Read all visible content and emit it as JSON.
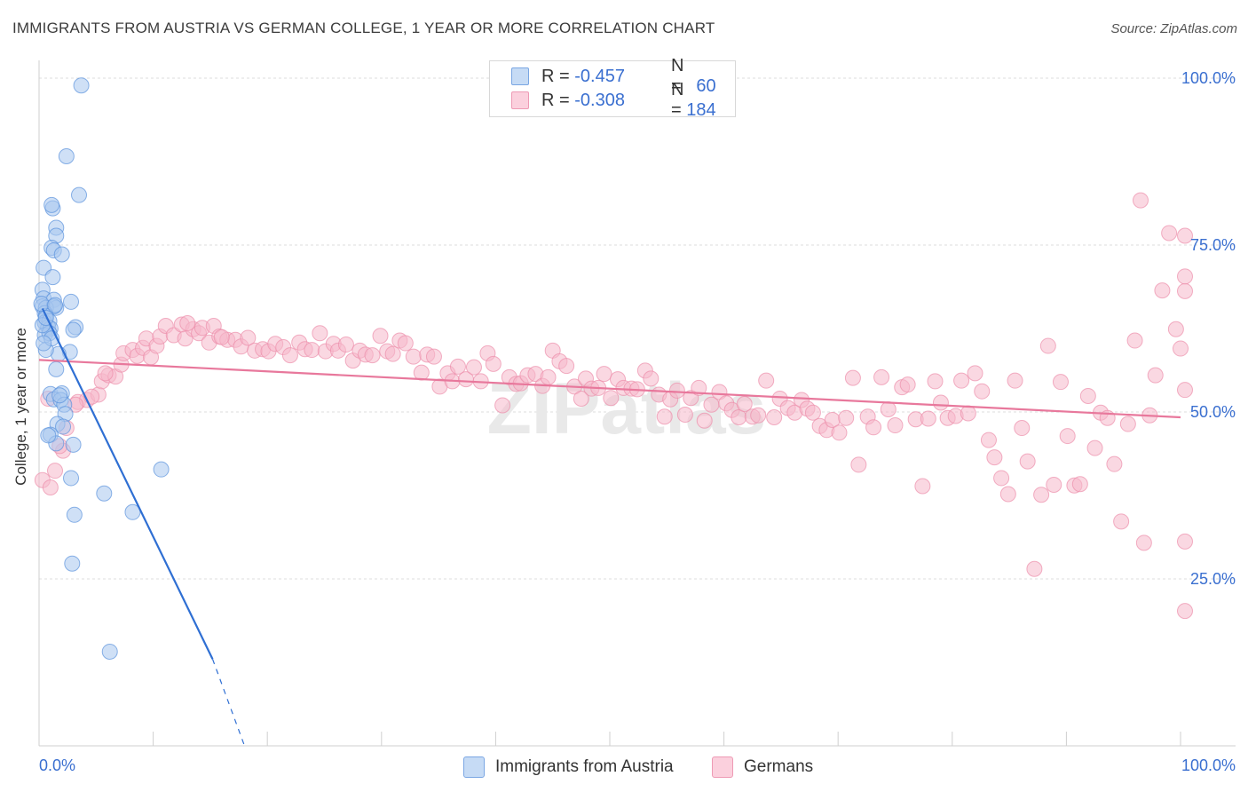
{
  "title": "IMMIGRANTS FROM AUSTRIA VS GERMAN COLLEGE, 1 YEAR OR MORE CORRELATION CHART",
  "source": "Source: ZipAtlas.com",
  "watermark": "ZIPatlas",
  "legend": {
    "rows": [
      {
        "r_label": "R =",
        "r_value": "-0.457",
        "n_label": "N =",
        "n_value": "60",
        "color": "#a7c7ef"
      },
      {
        "r_label": "R =",
        "r_value": "-0.308",
        "n_label": "N =",
        "n_value": "184",
        "color": "#f6b8ca"
      }
    ]
  },
  "chart_data": {
    "type": "scatter",
    "title": "IMMIGRANTS FROM AUSTRIA VS GERMAN COLLEGE, 1 YEAR OR MORE CORRELATION CHART",
    "xlabel": "",
    "ylabel": "College, 1 year or more",
    "xlim": [
      0,
      100
    ],
    "ylim": [
      0,
      100
    ],
    "x_tick_labels": [
      "0.0%",
      "100.0%"
    ],
    "y_tick_labels": [
      "100.0%",
      "75.0%",
      "50.0%",
      "25.0%"
    ],
    "y_tick_values": [
      100,
      75,
      50,
      25
    ],
    "grid": true,
    "series": [
      {
        "name": "Immigrants from Austria",
        "color": "#a7c7ef",
        "stroke": "#5b93dd",
        "line_color": "#2f6fd3",
        "trend": {
          "x0": 0.3,
          "y0": 65.5,
          "x1": 15.2,
          "y1": 13.0,
          "dash_x1": 18.0,
          "dash_y1": 0
        },
        "points": [
          [
            3.7,
            98.9
          ],
          [
            2.4,
            88.3
          ],
          [
            3.5,
            82.5
          ],
          [
            1.2,
            80.5
          ],
          [
            1.1,
            81.0
          ],
          [
            1.5,
            77.6
          ],
          [
            1.5,
            76.4
          ],
          [
            1.1,
            74.6
          ],
          [
            1.3,
            74.2
          ],
          [
            2.0,
            73.6
          ],
          [
            0.4,
            71.6
          ],
          [
            1.2,
            70.2
          ],
          [
            0.3,
            68.3
          ],
          [
            0.4,
            67.0
          ],
          [
            1.3,
            66.8
          ],
          [
            1.5,
            65.6
          ],
          [
            2.8,
            66.5
          ],
          [
            0.3,
            65.8
          ],
          [
            0.6,
            65.6
          ],
          [
            1.3,
            65.8
          ],
          [
            0.5,
            64.8
          ],
          [
            0.6,
            64.4
          ],
          [
            0.5,
            63.4
          ],
          [
            0.9,
            63.6
          ],
          [
            0.8,
            62.7
          ],
          [
            1.0,
            62.5
          ],
          [
            3.2,
            62.7
          ],
          [
            3.0,
            62.3
          ],
          [
            0.5,
            61.5
          ],
          [
            0.9,
            61.8
          ],
          [
            2.7,
            59.0
          ],
          [
            1.7,
            58.7
          ],
          [
            1.5,
            56.4
          ],
          [
            1.0,
            52.7
          ],
          [
            2.0,
            52.8
          ],
          [
            1.3,
            51.9
          ],
          [
            1.9,
            51.8
          ],
          [
            2.2,
            51.1
          ],
          [
            2.3,
            49.7
          ],
          [
            1.6,
            48.2
          ],
          [
            2.1,
            47.8
          ],
          [
            1.0,
            46.6
          ],
          [
            1.5,
            45.3
          ],
          [
            3.0,
            45.1
          ],
          [
            2.8,
            40.1
          ],
          [
            5.7,
            37.8
          ],
          [
            3.1,
            34.6
          ],
          [
            8.2,
            35.0
          ],
          [
            10.7,
            41.4
          ],
          [
            2.9,
            27.3
          ],
          [
            6.2,
            14.1
          ],
          [
            0.3,
            63.0
          ],
          [
            0.6,
            64.1
          ],
          [
            0.2,
            66.2
          ],
          [
            1.4,
            66.0
          ],
          [
            1.8,
            52.5
          ],
          [
            0.8,
            46.5
          ],
          [
            0.6,
            59.3
          ],
          [
            1.1,
            61.0
          ],
          [
            0.4,
            60.3
          ]
        ]
      },
      {
        "name": "Germans",
        "color": "#f6b8ca",
        "stroke": "#ec8fab",
        "line_color": "#e8789c",
        "trend": {
          "x0": 0,
          "y0": 57.8,
          "x1": 100,
          "y1": 49.2
        },
        "points": [
          [
            0.3,
            39.8
          ],
          [
            1.0,
            38.7
          ],
          [
            1.4,
            41.2
          ],
          [
            2.1,
            44.2
          ],
          [
            2.4,
            47.6
          ],
          [
            3.4,
            51.5
          ],
          [
            4.2,
            51.8
          ],
          [
            5.2,
            52.6
          ],
          [
            5.5,
            54.6
          ],
          [
            6.1,
            55.5
          ],
          [
            6.7,
            55.3
          ],
          [
            7.2,
            57.1
          ],
          [
            7.4,
            58.8
          ],
          [
            8.2,
            59.3
          ],
          [
            8.6,
            58.4
          ],
          [
            9.1,
            59.6
          ],
          [
            9.4,
            61.0
          ],
          [
            9.8,
            58.2
          ],
          [
            10.3,
            59.9
          ],
          [
            10.6,
            61.3
          ],
          [
            11.1,
            62.9
          ],
          [
            11.8,
            61.5
          ],
          [
            12.5,
            63.1
          ],
          [
            12.8,
            61.0
          ],
          [
            13.5,
            62.4
          ],
          [
            14.0,
            61.8
          ],
          [
            14.3,
            62.6
          ],
          [
            14.9,
            60.4
          ],
          [
            15.3,
            62.9
          ],
          [
            15.8,
            61.3
          ],
          [
            16.5,
            60.8
          ],
          [
            17.2,
            60.8
          ],
          [
            17.7,
            59.8
          ],
          [
            18.3,
            61.1
          ],
          [
            18.9,
            59.2
          ],
          [
            19.6,
            59.4
          ],
          [
            20.1,
            59.1
          ],
          [
            20.7,
            60.2
          ],
          [
            21.4,
            59.7
          ],
          [
            22.0,
            58.5
          ],
          [
            22.8,
            60.4
          ],
          [
            23.3,
            59.4
          ],
          [
            23.9,
            59.3
          ],
          [
            24.6,
            61.8
          ],
          [
            25.1,
            59.1
          ],
          [
            25.8,
            60.2
          ],
          [
            26.2,
            59.2
          ],
          [
            26.9,
            60.1
          ],
          [
            27.5,
            57.7
          ],
          [
            28.1,
            59.2
          ],
          [
            28.6,
            58.6
          ],
          [
            29.2,
            58.5
          ],
          [
            29.9,
            61.4
          ],
          [
            30.5,
            59.1
          ],
          [
            31.0,
            58.7
          ],
          [
            31.6,
            60.7
          ],
          [
            32.1,
            60.3
          ],
          [
            32.8,
            58.3
          ],
          [
            33.5,
            55.9
          ],
          [
            34.0,
            58.6
          ],
          [
            34.6,
            58.3
          ],
          [
            35.1,
            53.8
          ],
          [
            35.8,
            55.8
          ],
          [
            36.2,
            54.6
          ],
          [
            36.7,
            56.8
          ],
          [
            37.4,
            54.9
          ],
          [
            38.1,
            56.7
          ],
          [
            38.7,
            54.6
          ],
          [
            39.3,
            58.8
          ],
          [
            39.8,
            57.2
          ],
          [
            40.6,
            51.0
          ],
          [
            41.2,
            55.2
          ],
          [
            41.8,
            54.2
          ],
          [
            42.2,
            54.3
          ],
          [
            42.8,
            55.5
          ],
          [
            43.5,
            55.7
          ],
          [
            44.1,
            53.9
          ],
          [
            44.6,
            55.2
          ],
          [
            45.0,
            59.2
          ],
          [
            45.6,
            57.6
          ],
          [
            46.2,
            56.9
          ],
          [
            46.9,
            53.8
          ],
          [
            47.5,
            52.0
          ],
          [
            47.9,
            55.0
          ],
          [
            48.4,
            53.5
          ],
          [
            49.0,
            53.6
          ],
          [
            49.5,
            55.7
          ],
          [
            50.1,
            52.1
          ],
          [
            50.7,
            54.9
          ],
          [
            51.2,
            53.6
          ],
          [
            51.9,
            53.5
          ],
          [
            52.4,
            53.4
          ],
          [
            53.1,
            56.2
          ],
          [
            53.6,
            55.0
          ],
          [
            54.3,
            52.6
          ],
          [
            54.8,
            49.3
          ],
          [
            55.3,
            51.9
          ],
          [
            55.9,
            53.2
          ],
          [
            56.6,
            49.6
          ],
          [
            57.1,
            52.1
          ],
          [
            57.8,
            53.6
          ],
          [
            58.3,
            48.7
          ],
          [
            58.9,
            51.1
          ],
          [
            59.6,
            53.0
          ],
          [
            60.2,
            51.3
          ],
          [
            60.7,
            50.3
          ],
          [
            61.3,
            49.2
          ],
          [
            61.8,
            51.2
          ],
          [
            62.5,
            49.3
          ],
          [
            63.0,
            49.5
          ],
          [
            63.7,
            54.7
          ],
          [
            64.4,
            49.2
          ],
          [
            64.9,
            52.0
          ],
          [
            65.6,
            50.6
          ],
          [
            66.2,
            49.9
          ],
          [
            66.8,
            51.8
          ],
          [
            67.3,
            50.5
          ],
          [
            67.8,
            49.9
          ],
          [
            68.4,
            47.9
          ],
          [
            69.0,
            47.3
          ],
          [
            69.5,
            48.8
          ],
          [
            70.1,
            46.9
          ],
          [
            70.7,
            49.1
          ],
          [
            71.3,
            55.1
          ],
          [
            71.8,
            42.1
          ],
          [
            72.6,
            49.3
          ],
          [
            73.1,
            47.7
          ],
          [
            73.8,
            55.2
          ],
          [
            74.4,
            50.4
          ],
          [
            75.0,
            48.0
          ],
          [
            75.6,
            53.7
          ],
          [
            76.1,
            54.1
          ],
          [
            76.8,
            48.9
          ],
          [
            77.4,
            38.9
          ],
          [
            77.9,
            49.0
          ],
          [
            78.5,
            54.6
          ],
          [
            79.0,
            51.4
          ],
          [
            79.6,
            49.1
          ],
          [
            80.3,
            49.4
          ],
          [
            80.8,
            54.7
          ],
          [
            81.4,
            49.8
          ],
          [
            82.0,
            55.8
          ],
          [
            82.6,
            53.1
          ],
          [
            83.2,
            45.8
          ],
          [
            83.7,
            43.2
          ],
          [
            84.3,
            40.1
          ],
          [
            84.9,
            37.7
          ],
          [
            85.5,
            54.7
          ],
          [
            86.1,
            47.6
          ],
          [
            86.6,
            42.6
          ],
          [
            87.2,
            26.5
          ],
          [
            87.8,
            37.6
          ],
          [
            88.4,
            59.9
          ],
          [
            88.9,
            39.1
          ],
          [
            89.5,
            54.5
          ],
          [
            90.1,
            46.4
          ],
          [
            90.7,
            39.0
          ],
          [
            91.2,
            39.2
          ],
          [
            91.9,
            52.4
          ],
          [
            92.5,
            44.6
          ],
          [
            93.0,
            49.9
          ],
          [
            93.6,
            49.1
          ],
          [
            94.2,
            42.2
          ],
          [
            94.8,
            33.6
          ],
          [
            95.4,
            48.2
          ],
          [
            96.0,
            60.7
          ],
          [
            96.5,
            81.7
          ],
          [
            96.8,
            30.4
          ],
          [
            97.3,
            49.5
          ],
          [
            97.8,
            55.5
          ],
          [
            98.4,
            68.2
          ],
          [
            99.0,
            76.8
          ],
          [
            99.6,
            62.4
          ],
          [
            100.0,
            59.5
          ],
          [
            100.5,
            76.4
          ],
          [
            101.0,
            30.6
          ],
          [
            101.6,
            20.2
          ],
          [
            102.2,
            53.3
          ],
          [
            102.8,
            68.1
          ],
          [
            103.4,
            70.3
          ],
          [
            0.8,
            52.0
          ],
          [
            1.8,
            44.9
          ],
          [
            3.2,
            51.1
          ],
          [
            4.6,
            52.3
          ],
          [
            5.8,
            55.8
          ],
          [
            13.0,
            63.3
          ],
          [
            16.0,
            61.2
          ]
        ]
      }
    ]
  },
  "bottom_legend": [
    "Immigrants from Austria",
    "Germans"
  ]
}
